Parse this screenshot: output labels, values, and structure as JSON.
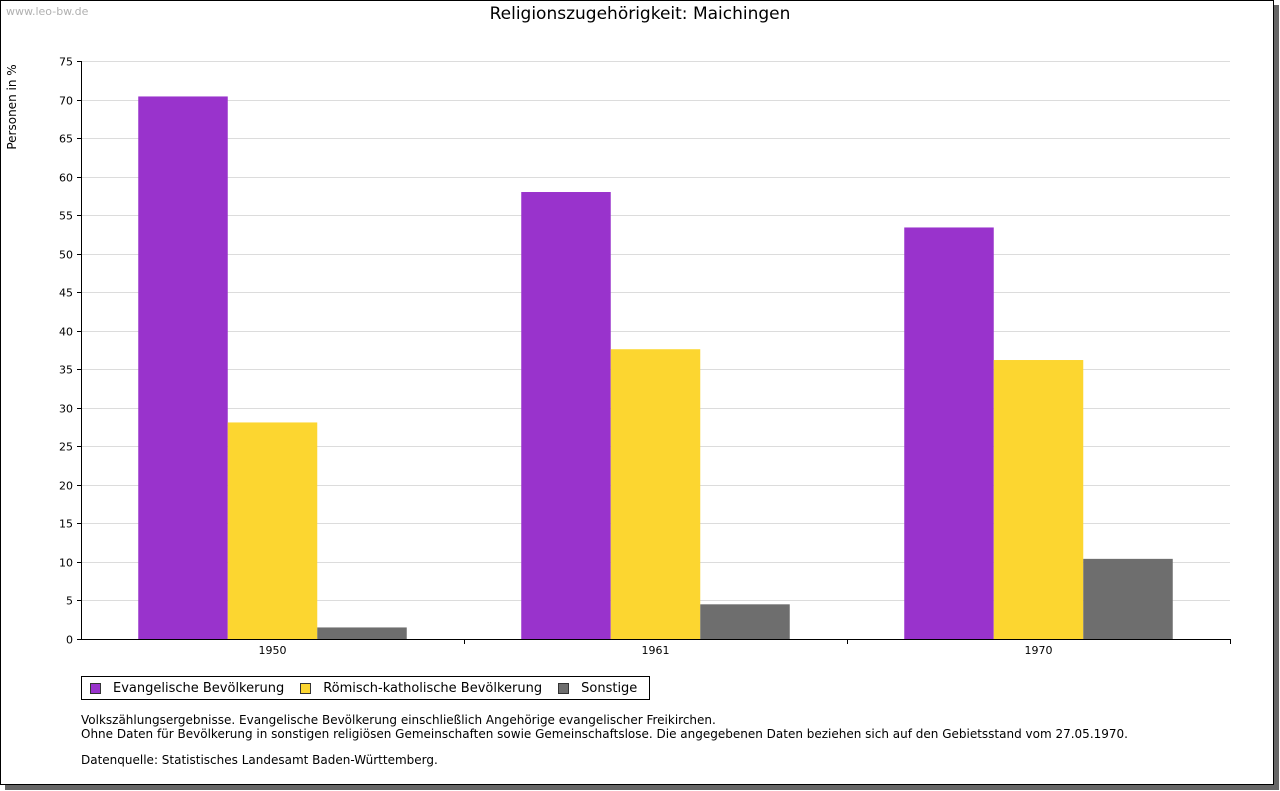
{
  "watermark": "www.leo-bw.de",
  "chart_data": {
    "type": "bar",
    "title": "Religionszugehörigkeit: Maichingen",
    "xlabel": "",
    "ylabel": "Personen in %",
    "ylim": [
      0,
      75
    ],
    "yticks": [
      0,
      5,
      10,
      15,
      20,
      25,
      30,
      35,
      40,
      45,
      50,
      55,
      60,
      65,
      70,
      75
    ],
    "categories": [
      "1950",
      "1961",
      "1970"
    ],
    "grid": true,
    "legend_position": "bottom-left",
    "series": [
      {
        "name": "Evangelische Bevölkerung",
        "color": "#9933cc",
        "values": [
          70.4,
          58.0,
          53.4
        ]
      },
      {
        "name": "Römisch-katholische Bevölkerung",
        "color": "#fcd630",
        "values": [
          28.1,
          37.6,
          36.2
        ]
      },
      {
        "name": "Sonstige",
        "color": "#6e6e6e",
        "values": [
          1.5,
          4.5,
          10.4
        ]
      }
    ]
  },
  "notes": {
    "line1": "Volkszählungsergebnisse. Evangelische Bevölkerung einschließlich Angehörige evangelischer Freikirchen.",
    "line2": "Ohne Daten für Bevölkerung in sonstigen religiösen Gemeinschaften sowie Gemeinschaftslose. Die angegebenen Daten beziehen sich auf den Gebietsstand vom 27.05.1970.",
    "source": "Datenquelle: Statistisches Landesamt Baden-Württemberg."
  }
}
